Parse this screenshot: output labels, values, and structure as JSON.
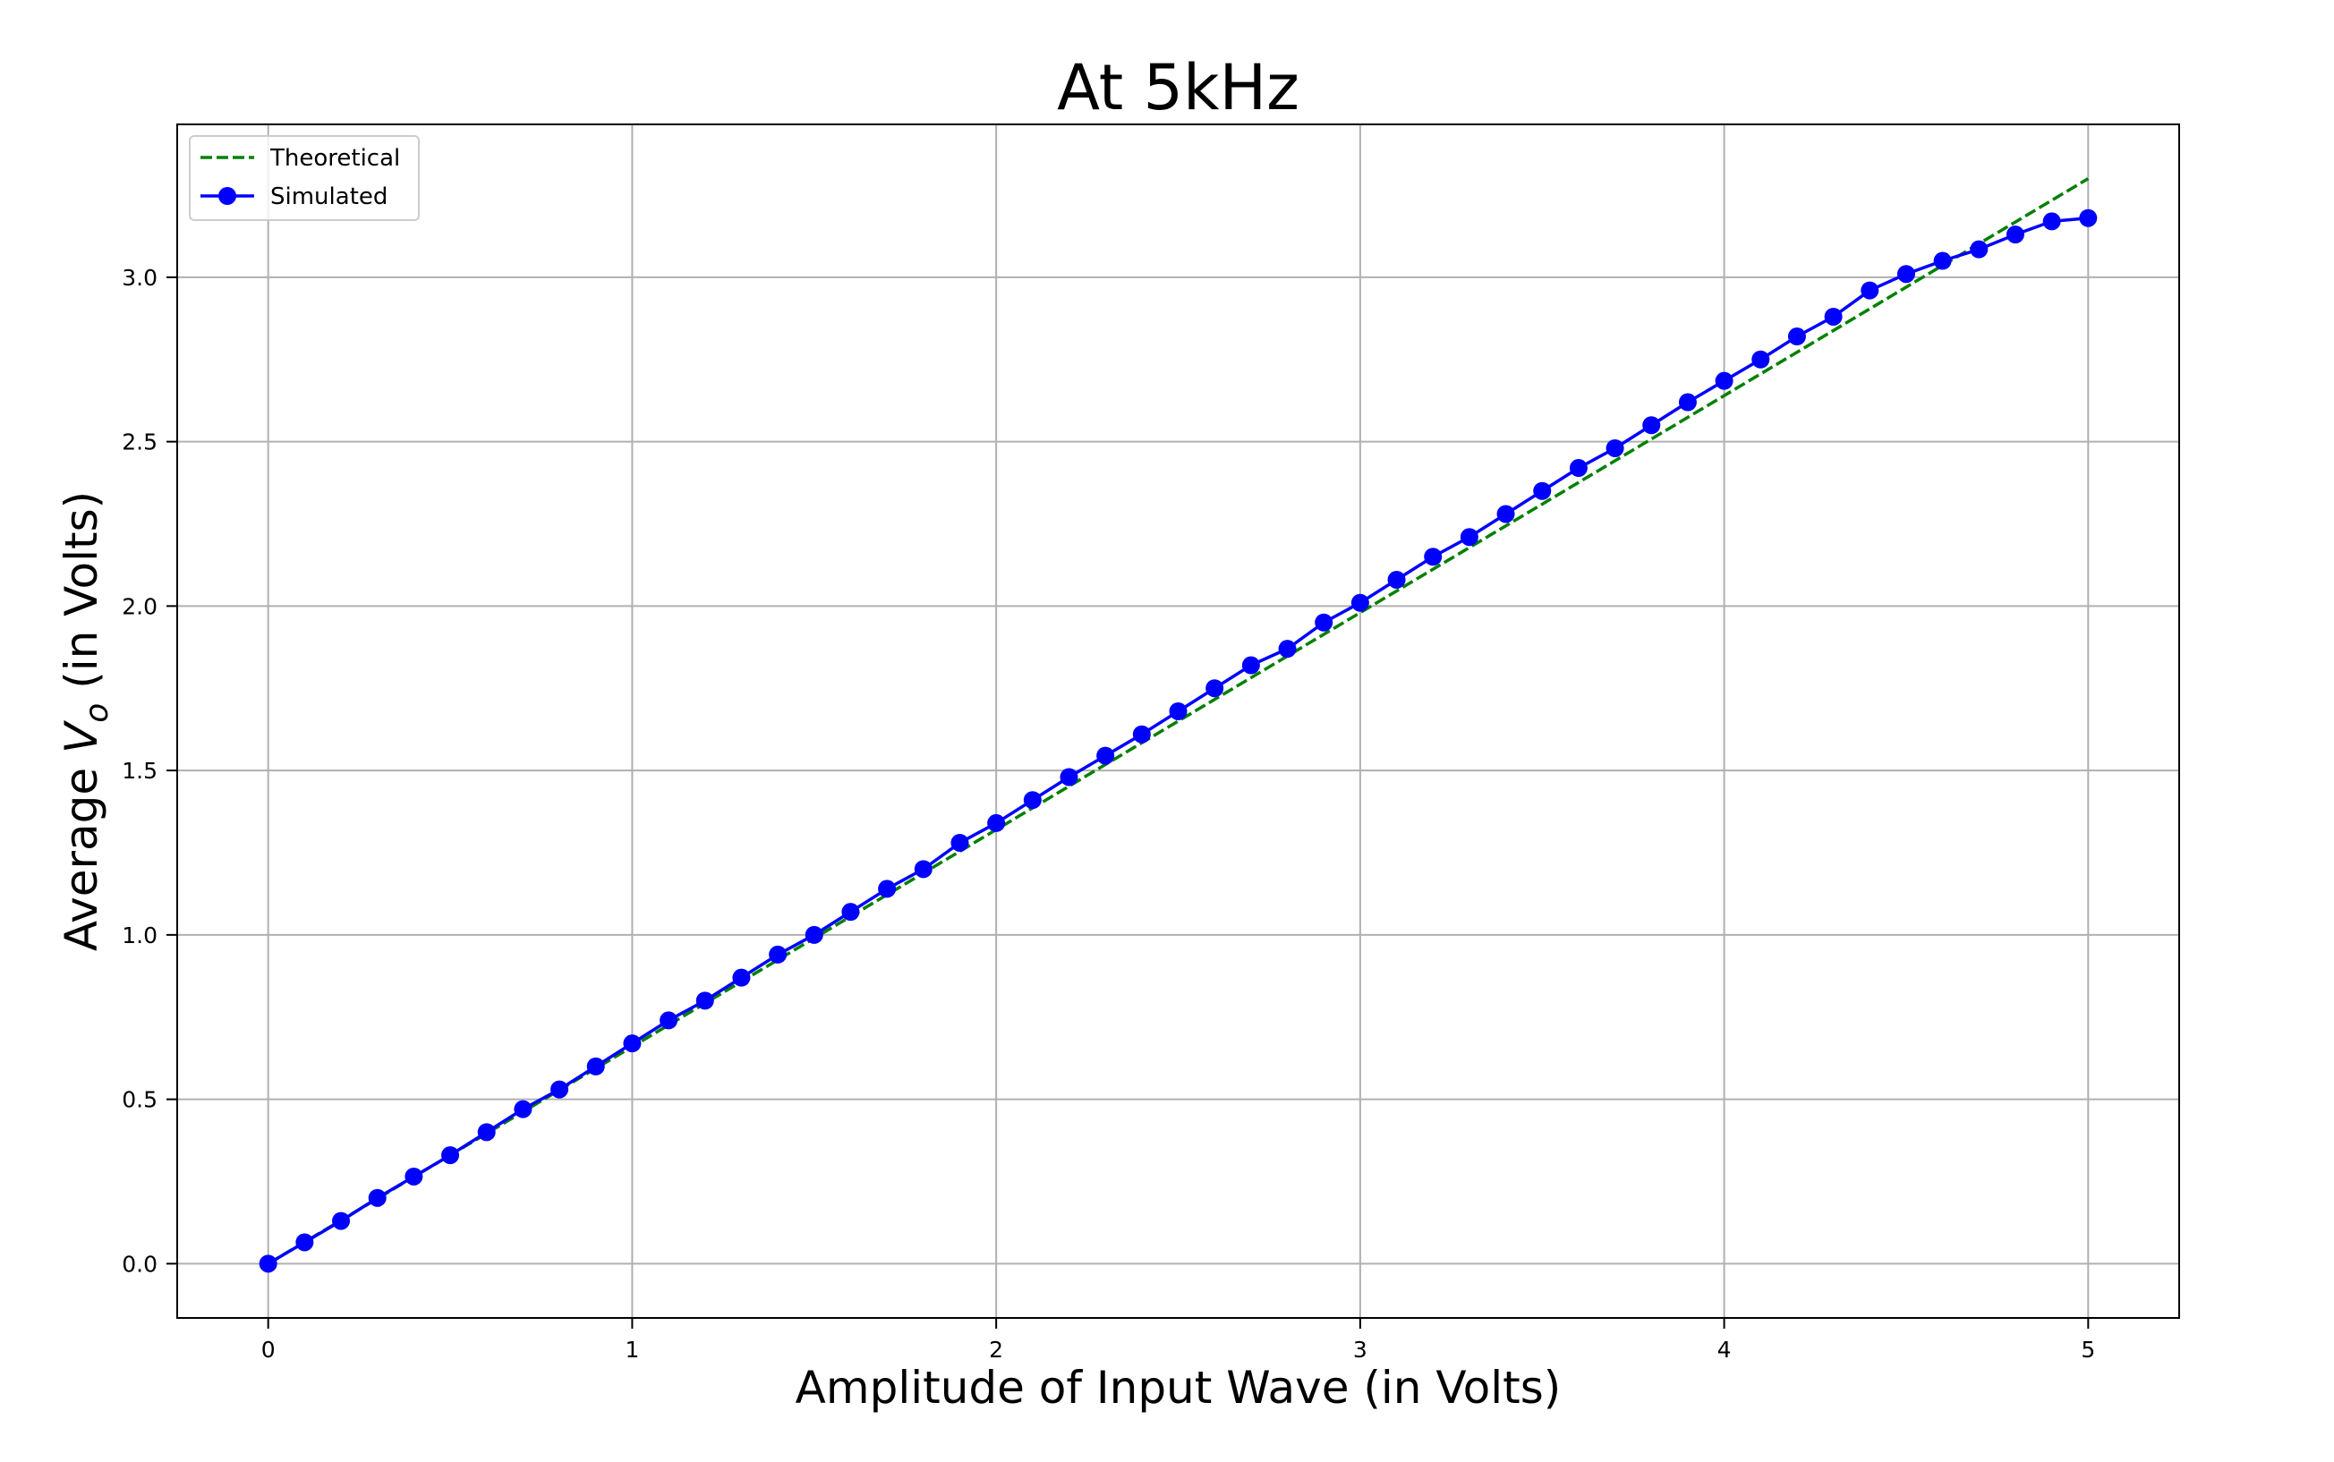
{
  "chart_data": {
    "type": "line",
    "title": "At 5kHz",
    "xlabel": "Amplitude of Input Wave (in Volts)",
    "ylabel": {
      "prefix": "Average ",
      "var": "V",
      "sub": "o",
      "suffix": " (in Volts)"
    },
    "xlim": [
      -0.25,
      5.25
    ],
    "ylim": [
      -0.165,
      3.465
    ],
    "xticks": [
      0,
      1,
      2,
      3,
      4,
      5
    ],
    "xtick_labels": [
      "0",
      "1",
      "2",
      "3",
      "4",
      "5"
    ],
    "yticks": [
      0.0,
      0.5,
      1.0,
      1.5,
      2.0,
      2.5,
      3.0
    ],
    "ytick_labels": [
      "0.0",
      "0.5",
      "1.0",
      "1.5",
      "2.0",
      "2.5",
      "3.0"
    ],
    "grid": true,
    "legend_position": "upper-left",
    "series": [
      {
        "name": "Theoretical",
        "style": "dashed",
        "color": "#008000",
        "marker": "none",
        "x": [
          0,
          5
        ],
        "y": [
          0,
          3.3
        ]
      },
      {
        "name": "Simulated",
        "style": "solid",
        "color": "#0000ff",
        "marker": "circle",
        "x": [
          0,
          0.1,
          0.2,
          0.3,
          0.4,
          0.5,
          0.6,
          0.7,
          0.8,
          0.9,
          1.0,
          1.1,
          1.2,
          1.3,
          1.4,
          1.5,
          1.6,
          1.7,
          1.8,
          1.9,
          2.0,
          2.1,
          2.2,
          2.3,
          2.4,
          2.5,
          2.6,
          2.7,
          2.8,
          2.9,
          3.0,
          3.1,
          3.2,
          3.3,
          3.4,
          3.5,
          3.6,
          3.7,
          3.8,
          3.9,
          4.0,
          4.1,
          4.2,
          4.3,
          4.4,
          4.5,
          4.6,
          4.7,
          4.8,
          4.9,
          5.0
        ],
        "y": [
          0.0,
          0.065,
          0.13,
          0.2,
          0.265,
          0.33,
          0.4,
          0.47,
          0.53,
          0.6,
          0.67,
          0.74,
          0.8,
          0.87,
          0.94,
          1.0,
          1.07,
          1.14,
          1.2,
          1.28,
          1.34,
          1.41,
          1.48,
          1.545,
          1.61,
          1.68,
          1.75,
          1.82,
          1.87,
          1.95,
          2.01,
          2.08,
          2.15,
          2.21,
          2.28,
          2.35,
          2.42,
          2.48,
          2.55,
          2.62,
          2.685,
          2.75,
          2.82,
          2.88,
          2.96,
          3.01,
          3.05,
          3.085,
          3.13,
          3.17,
          3.18
        ]
      }
    ]
  }
}
